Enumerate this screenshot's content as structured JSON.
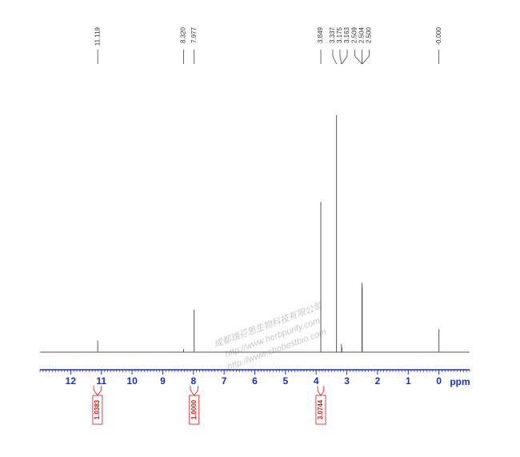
{
  "chart_data": {
    "type": "nmr",
    "x_label": "ppm",
    "xlim": [
      13,
      -1
    ],
    "xticks": [
      12,
      11,
      10,
      9,
      8,
      7,
      6,
      5,
      4,
      3,
      2,
      1,
      0
    ],
    "minor_tick_step": 0.1,
    "ylim": [
      0,
      320
    ],
    "color": "#555555",
    "axis_color": "#1f2fb0",
    "integral_color": "#d01818",
    "peaks": [
      {
        "x": 11.119,
        "label": "11.119",
        "height": 15
      },
      {
        "x": 8.32,
        "label": "8.320",
        "height": 4
      },
      {
        "x": 7.977,
        "label": "7.977",
        "height": 55
      },
      {
        "x": 3.849,
        "label": "3.849",
        "height": 195
      },
      {
        "x": 3.337,
        "label": "3.337",
        "height": 308
      },
      {
        "x": 3.175,
        "label": "3.175",
        "height": 10
      },
      {
        "x": 3.163,
        "label": "3.163",
        "height": 6
      },
      {
        "x": 2.509,
        "label": "2.509",
        "height": 84
      },
      {
        "x": 2.504,
        "label": "2.504",
        "height": 90
      },
      {
        "x": 2.5,
        "label": "2.500",
        "height": 84
      },
      {
        "x": 0,
        "label": "-0.000",
        "height": 30
      }
    ],
    "integrals": [
      {
        "range": [
          11.25,
          11.0
        ],
        "value": 1.0383,
        "label": "1.0383"
      },
      {
        "range": [
          8.1,
          7.85
        ],
        "value": 1,
        "label": "1.0000"
      },
      {
        "range": [
          3.95,
          3.75
        ],
        "value": 3.0744,
        "label": "3.0744"
      }
    ],
    "watermarks": [
      "成都瑞芬思生物科技有限公司",
      "http://www.herbpurify.com",
      "http://www.chobestbio.com"
    ]
  }
}
